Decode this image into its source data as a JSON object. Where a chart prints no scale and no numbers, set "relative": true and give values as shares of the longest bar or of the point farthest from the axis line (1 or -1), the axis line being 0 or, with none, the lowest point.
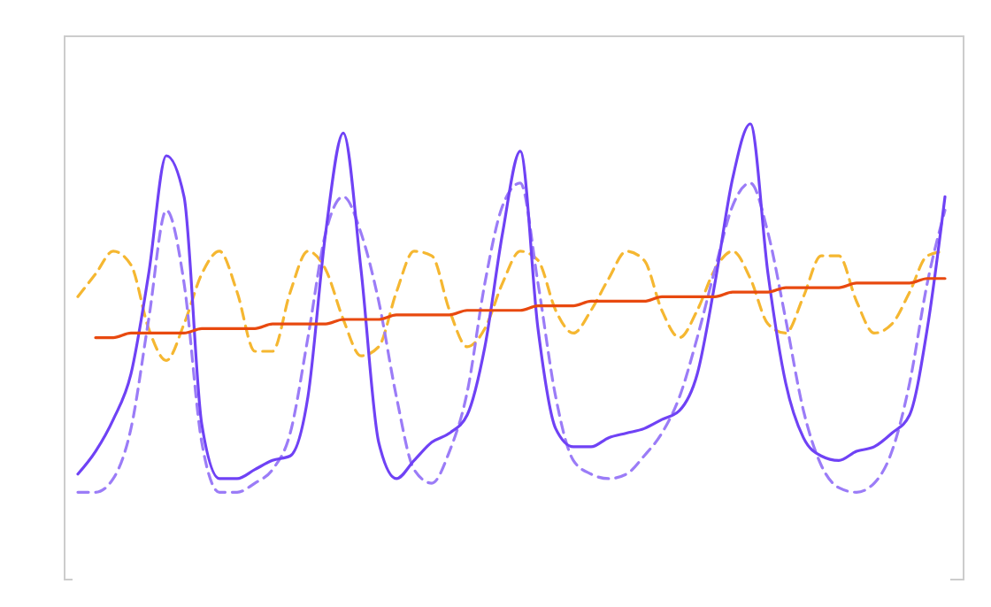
{
  "chart_data": {
    "type": "line",
    "relative": true,
    "categories": [
      null,
      null,
      null,
      null,
      null,
      null,
      null,
      null,
      null,
      null,
      null,
      null,
      null,
      null,
      null,
      null,
      null,
      null,
      null,
      null,
      null,
      null,
      null,
      null,
      null,
      null,
      null,
      null,
      null,
      null,
      null,
      null,
      null,
      null,
      null,
      null,
      null,
      null,
      null,
      null,
      null,
      null,
      null,
      null,
      null,
      null,
      null,
      null,
      null,
      null
    ],
    "series": [
      {
        "color": "#f5b731",
        "line_style": "dashed",
        "values": [
          0.62,
          0.67,
          0.72,
          0.69,
          0.55,
          0.48,
          0.56,
          0.67,
          0.72,
          0.63,
          0.5,
          0.5,
          0.63,
          0.72,
          0.68,
          0.57,
          0.49,
          0.51,
          0.63,
          0.72,
          0.71,
          0.59,
          0.51,
          0.55,
          0.65,
          0.72,
          0.7,
          0.59,
          0.54,
          0.59,
          0.66,
          0.72,
          0.7,
          0.59,
          0.53,
          0.59,
          0.68,
          0.72,
          0.66,
          0.56,
          0.54,
          0.62,
          0.71,
          0.71,
          0.61,
          0.54,
          0.56,
          0.63,
          0.71,
          0.72
        ]
      },
      {
        "color": "#9b7cf7",
        "line_style": "dashed",
        "values": [
          0.19,
          0.19,
          0.22,
          0.33,
          0.57,
          0.81,
          0.65,
          0.3,
          0.19,
          0.19,
          0.21,
          0.24,
          0.32,
          0.53,
          0.76,
          0.84,
          0.76,
          0.61,
          0.4,
          0.24,
          0.21,
          0.28,
          0.41,
          0.65,
          0.82,
          0.87,
          0.65,
          0.4,
          0.26,
          0.23,
          0.22,
          0.23,
          0.27,
          0.32,
          0.4,
          0.53,
          0.68,
          0.82,
          0.87,
          0.76,
          0.57,
          0.37,
          0.25,
          0.2,
          0.19,
          0.21,
          0.28,
          0.43,
          0.65,
          0.81
        ]
      },
      {
        "color": "#6f42f5",
        "line_style": "solid",
        "values": [
          0.23,
          0.28,
          0.35,
          0.45,
          0.67,
          0.93,
          0.84,
          0.34,
          0.22,
          0.22,
          0.24,
          0.26,
          0.27,
          0.4,
          0.76,
          0.98,
          0.68,
          0.3,
          0.22,
          0.26,
          0.3,
          0.32,
          0.36,
          0.51,
          0.76,
          0.94,
          0.55,
          0.33,
          0.29,
          0.29,
          0.31,
          0.32,
          0.33,
          0.35,
          0.37,
          0.45,
          0.65,
          0.88,
          1,
          0.67,
          0.43,
          0.31,
          0.27,
          0.26,
          0.28,
          0.29,
          0.32,
          0.36,
          0.55,
          0.84
        ]
      },
      {
        "color": "#e8490f",
        "line_style": "solid",
        "values": [
          null,
          0.53,
          0.53,
          0.54,
          0.54,
          0.54,
          0.54,
          0.55,
          0.55,
          0.55,
          0.55,
          0.56,
          0.56,
          0.56,
          0.56,
          0.57,
          0.57,
          0.57,
          0.58,
          0.58,
          0.58,
          0.58,
          0.59,
          0.59,
          0.59,
          0.59,
          0.6,
          0.6,
          0.6,
          0.61,
          0.61,
          0.61,
          0.61,
          0.62,
          0.62,
          0.62,
          0.62,
          0.63,
          0.63,
          0.63,
          0.64,
          0.64,
          0.64,
          0.64,
          0.65,
          0.65,
          0.65,
          0.65,
          0.66,
          0.66
        ]
      }
    ]
  }
}
